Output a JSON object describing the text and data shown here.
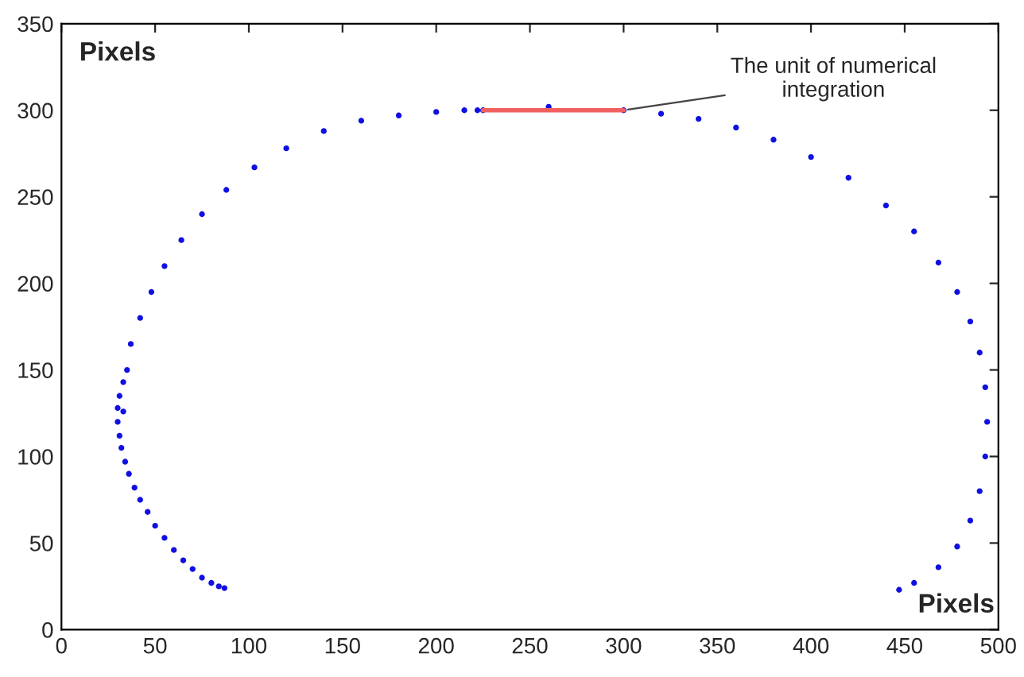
{
  "chart_data": {
    "type": "scatter",
    "xlabel": "Pixels",
    "ylabel": "Pixels",
    "xlim": [
      0,
      500
    ],
    "ylim": [
      0,
      350
    ],
    "xticks": [
      0,
      50,
      100,
      150,
      200,
      250,
      300,
      350,
      400,
      450,
      500
    ],
    "yticks": [
      0,
      50,
      100,
      150,
      200,
      250,
      300,
      350
    ],
    "grid": false,
    "series": [
      {
        "color": "#1010e0",
        "marker": "circle",
        "x": [
          87,
          84,
          80,
          75,
          70,
          65,
          60,
          55,
          50,
          46,
          42,
          39,
          36,
          34,
          32,
          31,
          30,
          30,
          31,
          33,
          35,
          37,
          42,
          48,
          55,
          64,
          75,
          88,
          103,
          120,
          140,
          160,
          180,
          200,
          215,
          222,
          225,
          260,
          300,
          320,
          340,
          360,
          380,
          400,
          420,
          440,
          455,
          468,
          478,
          485,
          490,
          493,
          494,
          493,
          490,
          485,
          478,
          468,
          455,
          447,
          33
        ],
        "values": [
          24,
          25,
          27,
          30,
          35,
          40,
          46,
          53,
          60,
          68,
          75,
          82,
          90,
          97,
          105,
          112,
          120,
          128,
          135,
          143,
          150,
          165,
          180,
          195,
          210,
          225,
          240,
          254,
          267,
          278,
          288,
          294,
          297,
          299,
          300,
          300,
          300,
          302,
          300,
          298,
          295,
          290,
          283,
          273,
          261,
          245,
          230,
          212,
          195,
          178,
          160,
          140,
          120,
          100,
          80,
          63,
          48,
          36,
          27,
          23,
          126
        ]
      },
      {
        "type": "line",
        "marker": "none",
        "color": "#f06060",
        "x": [
          225,
          300
        ],
        "values": [
          300,
          300
        ]
      }
    ],
    "annotations": [
      {
        "text": "The unit of numerical\nintegration",
        "x": 300,
        "y": 300
      }
    ]
  }
}
